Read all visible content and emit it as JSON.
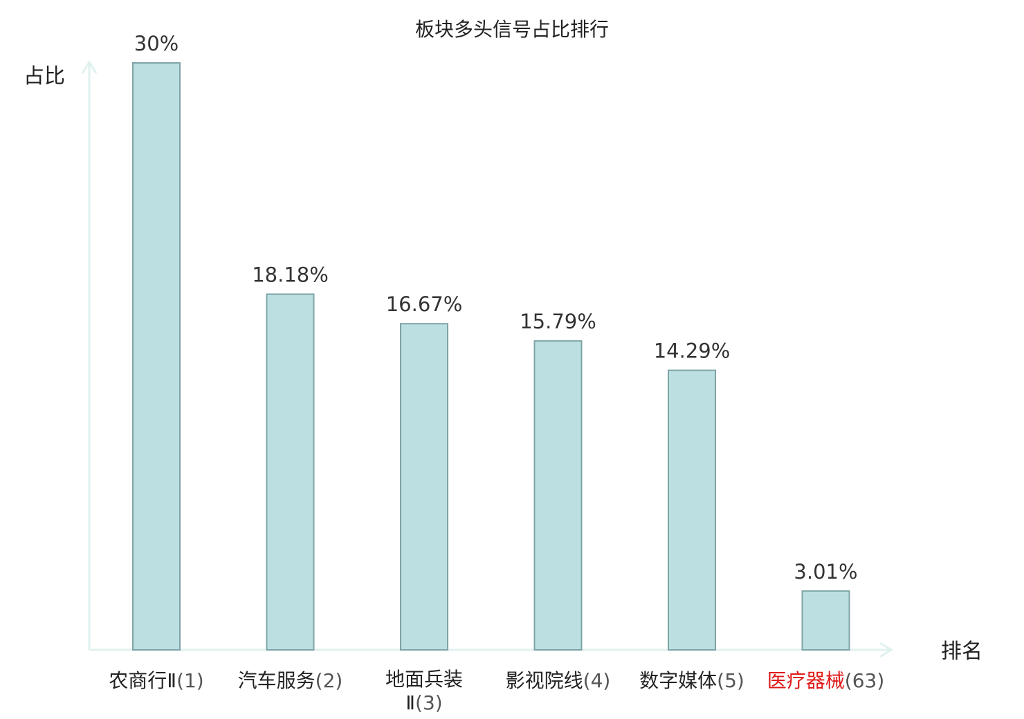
{
  "chart_data": {
    "type": "bar",
    "title": "板块多头信号占比排行",
    "ylabel": "占比",
    "xlabel": "排名",
    "ylim": [
      0,
      30
    ],
    "categories": [
      {
        "name": "农商行Ⅱ",
        "rank": "(1)"
      },
      {
        "name": "汽车服务",
        "rank": "(2)"
      },
      {
        "name": "地面兵装Ⅱ",
        "rank": "(3)"
      },
      {
        "name": "影视院线",
        "rank": "(4)"
      },
      {
        "name": "数字媒体",
        "rank": "(5)"
      },
      {
        "name": "医疗器械",
        "rank": "(63)",
        "highlight": true
      }
    ],
    "values": [
      30,
      18.18,
      16.67,
      15.79,
      14.29,
      3.01
    ],
    "value_labels": [
      "30%",
      "18.18%",
      "16.67%",
      "15.79%",
      "14.29%",
      "3.01%"
    ],
    "colors": {
      "bar_fill": "#bce0e2",
      "bar_stroke": "#7fa3a6",
      "axis": "#dff2ef",
      "highlight_text": "#e01818"
    }
  }
}
